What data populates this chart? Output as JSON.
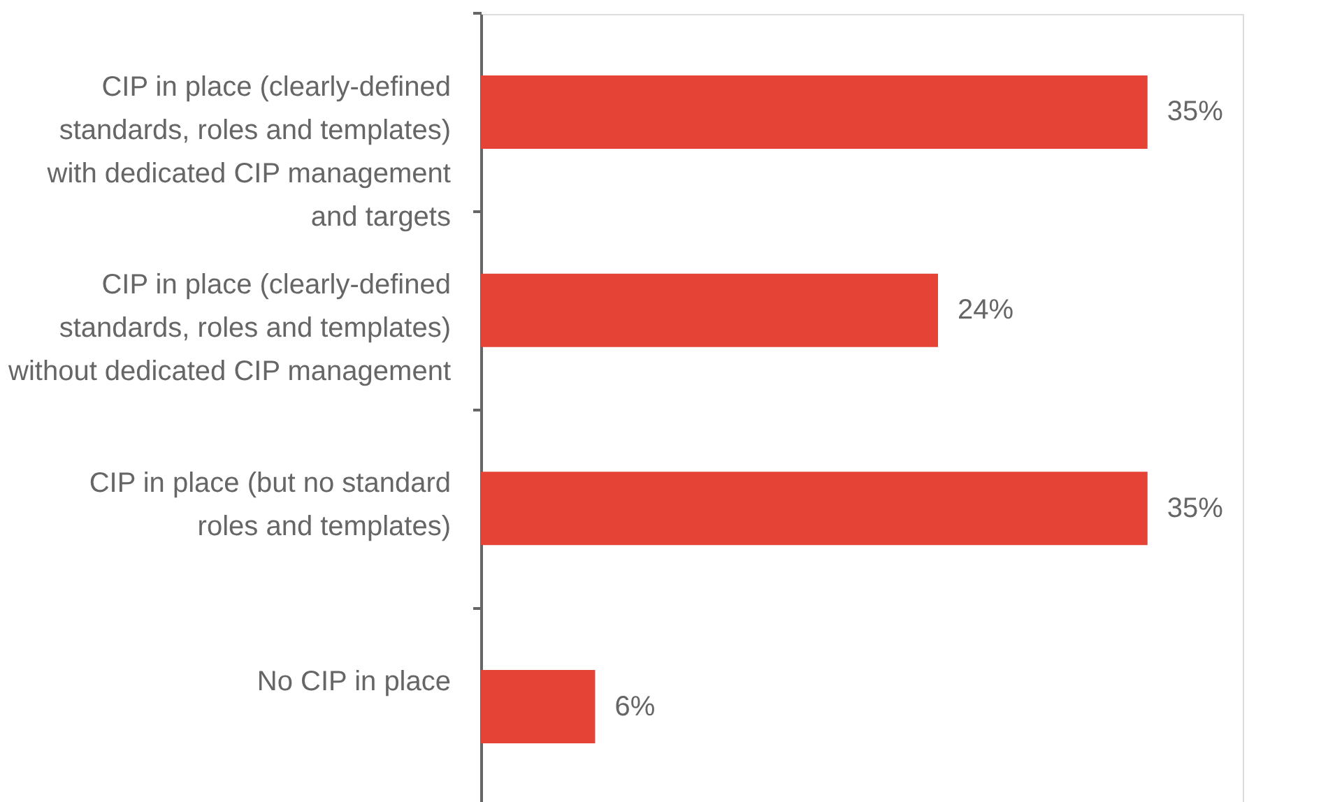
{
  "chart_data": {
    "type": "bar",
    "orientation": "horizontal",
    "categories": [
      "CIP in place (clearly-defined standards, roles and templates) with dedicated CIP management and targets",
      "CIP in place (clearly-defined standards, roles and templates) without dedicated CIP management",
      "CIP in place (but no standard roles and templates)",
      "No CIP in place"
    ],
    "values": [
      35,
      24,
      35,
      6
    ],
    "value_labels": [
      "35%",
      "24%",
      "35%",
      "6%"
    ],
    "color": "#e54336",
    "tick_labels": "y"
  }
}
